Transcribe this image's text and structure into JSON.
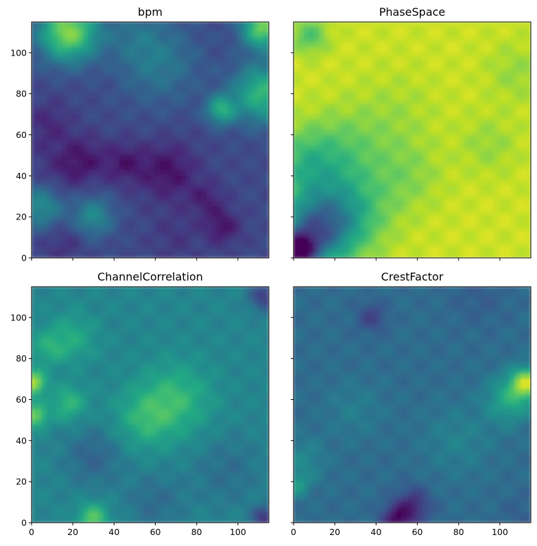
{
  "chart_data": [
    {
      "type": "heatmap",
      "title": "bpm",
      "colormap": "viridis",
      "xlim": [
        0,
        115
      ],
      "ylim": [
        0,
        115
      ],
      "xticks": [
        0,
        20,
        40,
        60,
        80,
        100
      ],
      "yticks": [
        0,
        20,
        40,
        60,
        80,
        100
      ],
      "xticklabels_shown": false,
      "yticklabels_shown": true,
      "base_level": 0.22,
      "features": [
        {
          "x": 18,
          "y": 110,
          "level": 0.82,
          "spread": 10
        },
        {
          "x": 112,
          "y": 112,
          "level": 0.78,
          "spread": 7
        },
        {
          "x": 112,
          "y": 80,
          "level": 0.66,
          "spread": 10
        },
        {
          "x": 92,
          "y": 72,
          "level": 0.6,
          "spread": 5
        },
        {
          "x": 5,
          "y": 25,
          "level": 0.5,
          "spread": 8
        },
        {
          "x": 30,
          "y": 20,
          "level": 0.48,
          "spread": 7
        },
        {
          "x": 62,
          "y": 95,
          "level": 0.4,
          "spread": 14
        },
        {
          "x": 50,
          "y": 110,
          "level": 0.32,
          "spread": 10
        },
        {
          "x": 12,
          "y": 40,
          "level": 0.14,
          "spread": 10
        },
        {
          "x": 8,
          "y": 65,
          "level": 0.12,
          "spread": 8
        },
        {
          "x": 25,
          "y": 48,
          "level": 0.08,
          "spread": 8
        },
        {
          "x": 45,
          "y": 46,
          "level": 0.08,
          "spread": 7
        },
        {
          "x": 66,
          "y": 42,
          "level": 0.05,
          "spread": 10
        },
        {
          "x": 93,
          "y": 15,
          "level": 0.06,
          "spread": 6
        },
        {
          "x": 15,
          "y": 8,
          "level": 0.14,
          "spread": 8
        },
        {
          "x": 70,
          "y": 10,
          "level": 0.16,
          "spread": 9
        },
        {
          "x": 85,
          "y": 28,
          "level": 0.1,
          "spread": 6
        }
      ]
    },
    {
      "type": "heatmap",
      "title": "PhaseSpace",
      "colormap": "viridis",
      "xlim": [
        0,
        115
      ],
      "ylim": [
        0,
        115
      ],
      "xticks": [
        0,
        20,
        40,
        60,
        80,
        100
      ],
      "yticks": [
        0,
        20,
        40,
        60,
        80,
        100
      ],
      "xticklabels_shown": false,
      "yticklabels_shown": false,
      "base_level": 0.92,
      "features": [
        {
          "x": 2,
          "y": 3,
          "level": 0.18,
          "spread": 6
        },
        {
          "x": 10,
          "y": 12,
          "level": 0.4,
          "spread": 12
        },
        {
          "x": 25,
          "y": 22,
          "level": 0.62,
          "spread": 14
        },
        {
          "x": 6,
          "y": 45,
          "level": 0.7,
          "spread": 12
        },
        {
          "x": 25,
          "y": 52,
          "level": 0.78,
          "spread": 14
        },
        {
          "x": 8,
          "y": 108,
          "level": 0.72,
          "spread": 6
        },
        {
          "x": 50,
          "y": 70,
          "level": 0.86,
          "spread": 14
        },
        {
          "x": 95,
          "y": 55,
          "level": 0.84,
          "spread": 10
        },
        {
          "x": 108,
          "y": 90,
          "level": 0.84,
          "spread": 10
        },
        {
          "x": 55,
          "y": 40,
          "level": 0.82,
          "spread": 12
        }
      ]
    },
    {
      "type": "heatmap",
      "title": "ChannelCorrelation",
      "colormap": "viridis",
      "xlim": [
        0,
        115
      ],
      "ylim": [
        0,
        115
      ],
      "xticks": [
        0,
        20,
        40,
        60,
        80,
        100
      ],
      "yticks": [
        0,
        20,
        40,
        60,
        80,
        100
      ],
      "xticklabels_shown": true,
      "yticklabels_shown": true,
      "base_level": 0.45,
      "features": [
        {
          "x": 1,
          "y": 68,
          "level": 0.88,
          "spread": 4
        },
        {
          "x": 2,
          "y": 52,
          "level": 0.78,
          "spread": 4
        },
        {
          "x": 18,
          "y": 58,
          "level": 0.66,
          "spread": 6
        },
        {
          "x": 70,
          "y": 60,
          "level": 0.66,
          "spread": 12
        },
        {
          "x": 55,
          "y": 50,
          "level": 0.62,
          "spread": 10
        },
        {
          "x": 30,
          "y": 2,
          "level": 0.74,
          "spread": 5
        },
        {
          "x": 20,
          "y": 90,
          "level": 0.6,
          "spread": 8
        },
        {
          "x": 8,
          "y": 85,
          "level": 0.6,
          "spread": 6
        },
        {
          "x": 113,
          "y": 110,
          "level": 0.18,
          "spread": 5
        },
        {
          "x": 113,
          "y": 2,
          "level": 0.15,
          "spread": 4
        },
        {
          "x": 30,
          "y": 32,
          "level": 0.32,
          "spread": 10
        },
        {
          "x": 60,
          "y": 10,
          "level": 0.35,
          "spread": 10
        },
        {
          "x": 95,
          "y": 25,
          "level": 0.36,
          "spread": 12
        }
      ]
    },
    {
      "type": "heatmap",
      "title": "CrestFactor",
      "colormap": "viridis",
      "xlim": [
        0,
        115
      ],
      "ylim": [
        0,
        115
      ],
      "xticks": [
        0,
        20,
        40,
        60,
        80,
        100
      ],
      "yticks": [
        0,
        20,
        40,
        60,
        80,
        100
      ],
      "xticklabels_shown": true,
      "yticklabels_shown": false,
      "base_level": 0.35,
      "features": [
        {
          "x": 113,
          "y": 68,
          "level": 0.85,
          "spread": 5
        },
        {
          "x": 105,
          "y": 60,
          "level": 0.6,
          "spread": 8
        },
        {
          "x": 50,
          "y": 1,
          "level": 0.06,
          "spread": 5
        },
        {
          "x": 58,
          "y": 8,
          "level": 0.12,
          "spread": 6
        },
        {
          "x": 38,
          "y": 100,
          "level": 0.2,
          "spread": 5
        },
        {
          "x": 5,
          "y": 30,
          "level": 0.46,
          "spread": 8
        },
        {
          "x": 80,
          "y": 40,
          "level": 0.44,
          "spread": 12
        },
        {
          "x": 30,
          "y": 55,
          "level": 0.42,
          "spread": 10
        },
        {
          "x": 2,
          "y": 18,
          "level": 0.52,
          "spread": 4
        },
        {
          "x": 90,
          "y": 110,
          "level": 0.3,
          "spread": 10
        },
        {
          "x": 110,
          "y": 5,
          "level": 0.3,
          "spread": 6
        }
      ]
    }
  ]
}
